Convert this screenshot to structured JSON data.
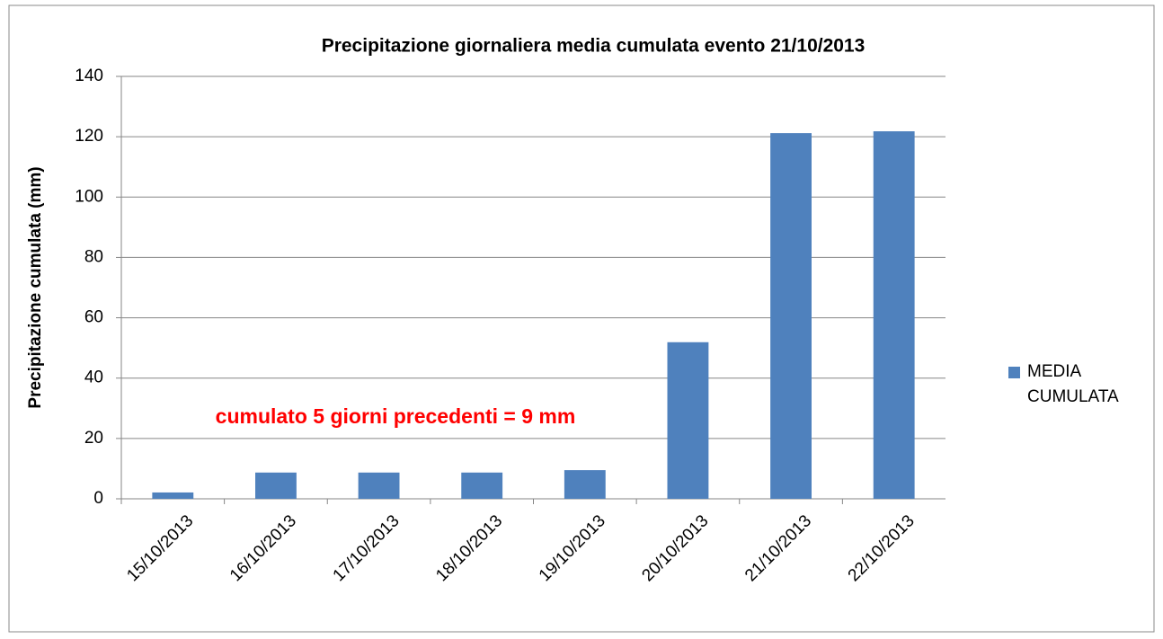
{
  "chart_data": {
    "type": "bar",
    "title": "Precipitazione giornaliera media  cumulata evento 21/10/2013",
    "y_label": "Precipitazione cumulata (mm)",
    "annotation": "cumulato 5 giorni precedenti = 9 mm",
    "categories": [
      "15/10/2013",
      "16/10/2013",
      "17/10/2013",
      "18/10/2013",
      "19/10/2013",
      "20/10/2013",
      "21/10/2013",
      "22/10/2013"
    ],
    "series": [
      {
        "name": "MEDIA CUMULATA",
        "color": "#4f81bd",
        "values": [
          2.1,
          8.7,
          8.7,
          8.7,
          9.5,
          51.9,
          121.2,
          121.8
        ]
      }
    ],
    "ylim": [
      0,
      140
    ],
    "yticks": [
      0,
      20,
      40,
      60,
      80,
      100,
      120,
      140
    ],
    "grid": true,
    "legend": "right"
  }
}
